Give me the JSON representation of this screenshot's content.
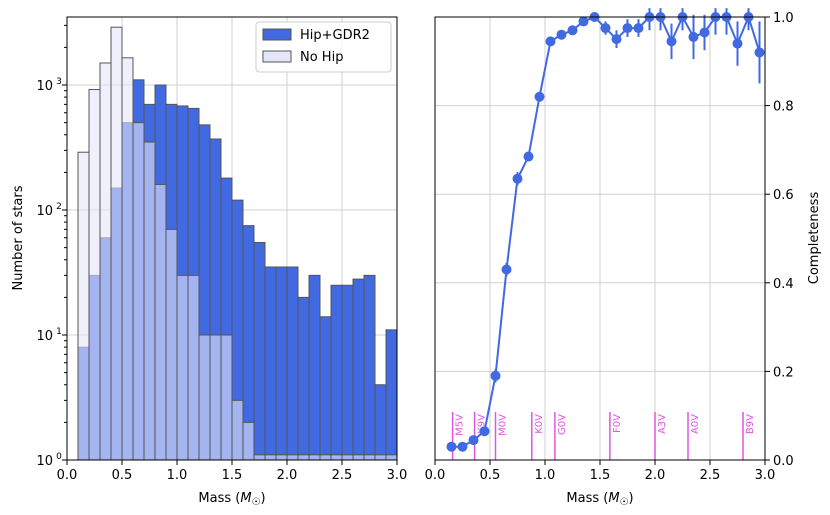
{
  "colors": {
    "hip_gdr2": "#4169e1",
    "no_hip": "#e6e6fa",
    "no_hip_edge": "#555555",
    "line": "#4169e1",
    "spectral": "#e056e0",
    "grid": "#d0d0d0"
  },
  "chart_data": [
    {
      "type": "bar",
      "subtype": "histogram",
      "xlabel": "Mass (M☉)",
      "ylabel": "Number of stars",
      "xlim": [
        0.0,
        3.0
      ],
      "ylim": [
        1,
        3500
      ],
      "yscale": "log",
      "grid": true,
      "legend_position": "top-right",
      "bin_width": 0.1,
      "xticks": [
        0.0,
        0.5,
        1.0,
        1.5,
        2.0,
        2.5,
        3.0
      ],
      "xtick_labels": [
        "0.0",
        "0.5",
        "1.0",
        "1.5",
        "2.0",
        "2.5",
        "3.0"
      ],
      "yticks": [
        1,
        10,
        100,
        1000
      ],
      "ytick_exponents": [
        "0",
        "1",
        "2",
        "3"
      ],
      "bin_starts": [
        0.1,
        0.2,
        0.3,
        0.4,
        0.5,
        0.6,
        0.7,
        0.8,
        0.9,
        1.0,
        1.1,
        1.2,
        1.3,
        1.4,
        1.5,
        1.6,
        1.7,
        1.8,
        1.9,
        2.0,
        2.1,
        2.2,
        2.3,
        2.4,
        2.5,
        2.6,
        2.7,
        2.8,
        2.9
      ],
      "series": [
        {
          "name": "Hip+GDR2",
          "values": [
            8,
            30,
            60,
            150,
            500,
            1100,
            700,
            1000,
            700,
            680,
            650,
            480,
            370,
            180,
            120,
            75,
            55,
            35,
            35,
            35,
            20,
            30,
            14,
            25,
            25,
            28,
            30,
            4,
            11
          ]
        },
        {
          "name": "No Hip",
          "values": [
            290,
            920,
            1500,
            2900,
            1650,
            500,
            350,
            160,
            70,
            30,
            30,
            10,
            10,
            10,
            3,
            2,
            1.1,
            1.1,
            1.1,
            1.1,
            1.1,
            1.1,
            1.1,
            1.1,
            1.1,
            1.1,
            1.1,
            1.1,
            1.1
          ]
        }
      ]
    },
    {
      "type": "line",
      "xlabel": "Mass (M☉)",
      "ylabel": "Completeness",
      "xlim": [
        0.0,
        3.0
      ],
      "ylim": [
        0.0,
        1.0
      ],
      "y_axis_side": "right",
      "grid": true,
      "xticks": [
        0.0,
        0.5,
        1.0,
        1.5,
        2.0,
        2.5,
        3.0
      ],
      "xtick_labels": [
        "0.0",
        "0.5",
        "1.0",
        "1.5",
        "2.0",
        "2.5",
        "3.0"
      ],
      "yticks": [
        0.0,
        0.2,
        0.4,
        0.6,
        0.8,
        1.0
      ],
      "ytick_labels": [
        "0.0",
        "0.2",
        "0.4",
        "0.6",
        "0.8",
        "1.0"
      ],
      "x": [
        0.15,
        0.25,
        0.35,
        0.45,
        0.55,
        0.65,
        0.75,
        0.85,
        0.95,
        1.05,
        1.15,
        1.25,
        1.35,
        1.45,
        1.55,
        1.65,
        1.75,
        1.85,
        1.95,
        2.05,
        2.15,
        2.25,
        2.35,
        2.45,
        2.55,
        2.65,
        2.75,
        2.85,
        2.95
      ],
      "y": [
        0.03,
        0.03,
        0.045,
        0.065,
        0.19,
        0.43,
        0.635,
        0.685,
        0.82,
        0.945,
        0.96,
        0.97,
        0.99,
        1.0,
        0.975,
        0.95,
        0.975,
        0.975,
        1.0,
        1.0,
        0.945,
        1.0,
        0.955,
        0.965,
        1.0,
        1.0,
        0.94,
        1.0,
        0.92
      ],
      "yerr": [
        0.005,
        0.005,
        0.008,
        0.01,
        0.015,
        0.015,
        0.015,
        0.01,
        0.01,
        0.008,
        0.008,
        0.008,
        0.008,
        0.01,
        0.015,
        0.02,
        0.02,
        0.02,
        0.03,
        0.03,
        0.04,
        0.03,
        0.05,
        0.04,
        0.04,
        0.04,
        0.05,
        0.03,
        0.07
      ],
      "annotations": [
        {
          "label": "M5V",
          "x": 0.16
        },
        {
          "label": "K9V",
          "x": 0.36
        },
        {
          "label": "M0V",
          "x": 0.55
        },
        {
          "label": "K0V",
          "x": 0.88
        },
        {
          "label": "G0V",
          "x": 1.09
        },
        {
          "label": "F0V",
          "x": 1.59
        },
        {
          "label": "A3V",
          "x": 2.0
        },
        {
          "label": "A0V",
          "x": 2.3
        },
        {
          "label": "B9V",
          "x": 2.8
        }
      ]
    }
  ]
}
